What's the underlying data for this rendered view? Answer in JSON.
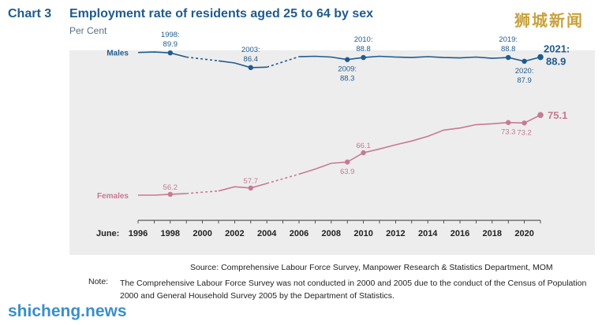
{
  "header": {
    "chart_label": "Chart 3",
    "title": "Employment rate of residents aged 25 to 64 by sex",
    "unit": "Per Cent"
  },
  "watermark_cn": "狮城新闻",
  "watermark_site": "shicheng.news",
  "chart_data": {
    "type": "line",
    "x_axis_prefix": "June:",
    "xlim": [
      1996,
      2021
    ],
    "ylim": [
      50,
      95
    ],
    "x_ticks": [
      1996,
      1998,
      2000,
      2002,
      2004,
      2006,
      2008,
      2010,
      2012,
      2014,
      2016,
      2018,
      2020
    ],
    "colors": {
      "males": "#1f5b8f",
      "females": "#c77a92"
    },
    "series": [
      {
        "name": "Males",
        "segments": [
          {
            "x": [
              1996,
              1997,
              1998,
              1999
            ],
            "y": [
              90.0,
              90.1,
              89.9,
              88.9
            ]
          },
          {
            "x": [
              2001,
              2002,
              2003,
              2004
            ],
            "y": [
              88.0,
              87.5,
              86.4,
              86.5
            ]
          },
          {
            "x": [
              2006,
              2007,
              2008,
              2009,
              2010,
              2011,
              2012,
              2013,
              2014,
              2015,
              2016,
              2017,
              2018,
              2019,
              2020,
              2021
            ],
            "y": [
              89.0,
              89.1,
              88.9,
              88.3,
              88.8,
              89.1,
              88.9,
              88.8,
              89.0,
              88.8,
              88.7,
              88.9,
              88.6,
              88.8,
              87.9,
              88.9
            ]
          }
        ],
        "gaps": [
          {
            "x": [
              1999,
              2001
            ],
            "y": [
              88.9,
              88.0
            ]
          },
          {
            "x": [
              2004,
              2006
            ],
            "y": [
              86.5,
              89.0
            ]
          }
        ],
        "markers": [
          {
            "x": 1998,
            "y": 89.9,
            "year": "1998:",
            "value": "89.9",
            "pos": "above"
          },
          {
            "x": 2003,
            "y": 86.4,
            "year": "2003:",
            "value": "86.4",
            "pos": "above"
          },
          {
            "x": 2009,
            "y": 88.3,
            "year": "2009:",
            "value": "88.3",
            "pos": "below"
          },
          {
            "x": 2010,
            "y": 88.8,
            "year": "2010:",
            "value": "88.8",
            "pos": "above"
          },
          {
            "x": 2019,
            "y": 88.8,
            "year": "2019:",
            "value": "88.8",
            "pos": "above"
          },
          {
            "x": 2020,
            "y": 87.9,
            "year": "2020:",
            "value": "87.9",
            "pos": "below"
          },
          {
            "x": 2021,
            "y": 88.9,
            "year": "2021:",
            "value": "88.9",
            "pos": "right-big"
          }
        ]
      },
      {
        "name": "Females",
        "segments": [
          {
            "x": [
              1996,
              1997,
              1998,
              1999
            ],
            "y": [
              56.0,
              56.0,
              56.2,
              56.4
            ]
          },
          {
            "x": [
              2001,
              2002,
              2003,
              2004
            ],
            "y": [
              57.0,
              58.0,
              57.7,
              58.8
            ]
          },
          {
            "x": [
              2006,
              2007,
              2008,
              2009,
              2010,
              2011,
              2012,
              2013,
              2014,
              2015,
              2016,
              2017,
              2018,
              2019,
              2020,
              2021
            ],
            "y": [
              61.0,
              62.2,
              63.6,
              63.9,
              66.1,
              67.0,
              68.0,
              68.9,
              70.0,
              71.5,
              72.0,
              72.8,
              73.0,
              73.3,
              73.2,
              75.1
            ]
          }
        ],
        "gaps": [
          {
            "x": [
              1999,
              2001
            ],
            "y": [
              56.4,
              57.0
            ]
          },
          {
            "x": [
              2004,
              2006
            ],
            "y": [
              58.8,
              61.0
            ]
          }
        ],
        "markers": [
          {
            "x": 1998,
            "y": 56.2,
            "value": "56.2",
            "pos": "above"
          },
          {
            "x": 2003,
            "y": 57.7,
            "value": "57.7",
            "pos": "above"
          },
          {
            "x": 2009,
            "y": 63.9,
            "value": "63.9",
            "pos": "below"
          },
          {
            "x": 2010,
            "y": 66.1,
            "value": "66.1",
            "pos": "above"
          },
          {
            "x": 2019,
            "y": 73.3,
            "value": "73.3",
            "pos": "below"
          },
          {
            "x": 2020,
            "y": 73.2,
            "value": "73.2",
            "pos": "below"
          },
          {
            "x": 2021,
            "y": 75.1,
            "value": "75.1",
            "pos": "right-big"
          }
        ]
      }
    ]
  },
  "source": "Source: Comprehensive Labour Force Survey, Manpower Research & Statistics Department, MOM",
  "note": {
    "label": "Note:",
    "text": "The Comprehensive Labour Force Survey was not conducted in 2000 and 2005 due to the conduct of the Census of Population 2000 and General Household Survey 2005 by the Department of Statistics."
  }
}
